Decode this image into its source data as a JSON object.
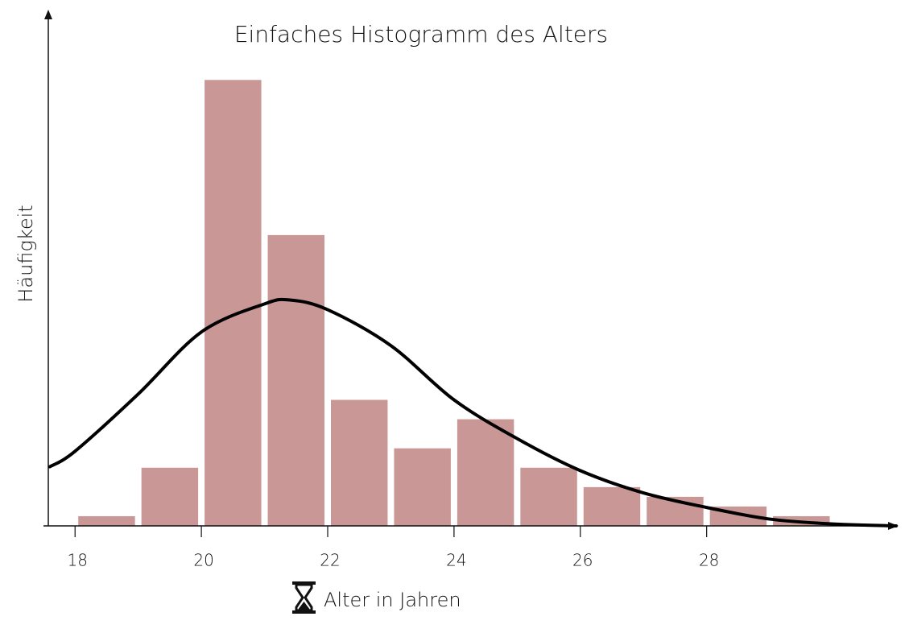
{
  "chart_data": {
    "type": "histogram",
    "title": "Einfaches Histogramm des Alters",
    "x_label": "Alter in Jahren",
    "y_label": "Häufigkeit",
    "bins": [
      18,
      19,
      20,
      21,
      22,
      23,
      24,
      25,
      26,
      27,
      28,
      29,
      30
    ],
    "values": [
      1,
      6,
      46,
      30,
      13,
      8,
      11,
      6,
      4,
      3,
      2,
      1
    ],
    "color": "#c99796",
    "xlim": [
      17.5,
      31
    ],
    "ylim": [
      0,
      53
    ],
    "xticks": [
      18,
      20,
      22,
      24,
      26,
      28
    ],
    "density": {
      "x": [
        17.6,
        18,
        19,
        20,
        21,
        21.4,
        22,
        23,
        24,
        25,
        26,
        27,
        28,
        29,
        30,
        31
      ],
      "values": [
        6.1,
        7.7,
        13.6,
        20,
        22.9,
        23.3,
        22.3,
        18.6,
        13,
        9,
        5.7,
        3.4,
        1.9,
        0.7,
        0.2,
        0
      ],
      "color": "#000000"
    }
  }
}
